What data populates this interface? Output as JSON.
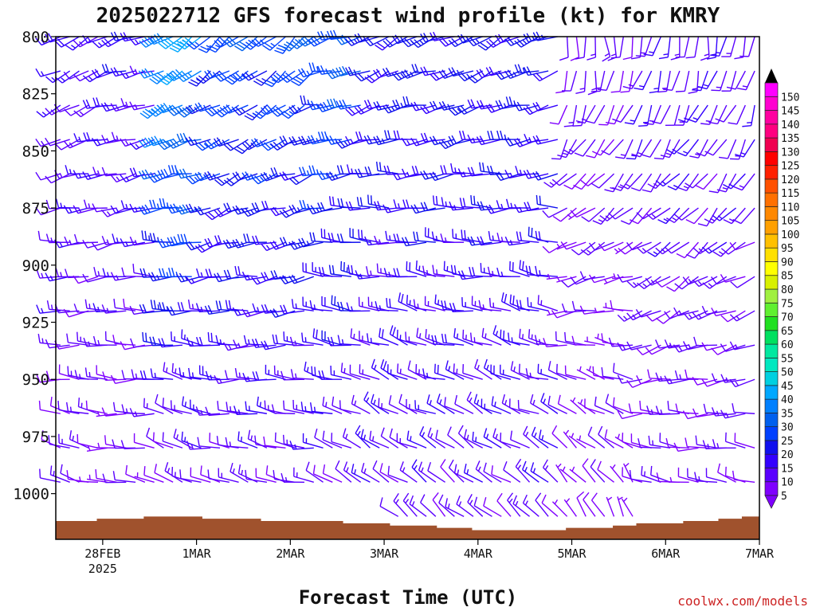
{
  "chart_data": {
    "type": "wind-barb-profile",
    "title": "2025022712 GFS forecast wind profile (kt) for KMRY",
    "xlabel": "Forecast Time (UTC)",
    "ylabel": "",
    "credit": "coolwx.com/models",
    "x_ticks": [
      {
        "day": 28,
        "label": "28FEB",
        "sublabel": "2025"
      },
      {
        "day": 29,
        "label": "1MAR"
      },
      {
        "day": 30,
        "label": "2MAR"
      },
      {
        "day": 31,
        "label": "3MAR"
      },
      {
        "day": 32,
        "label": "4MAR"
      },
      {
        "day": 33,
        "label": "5MAR"
      },
      {
        "day": 34,
        "label": "6MAR"
      },
      {
        "day": 35,
        "label": "7MAR"
      }
    ],
    "x_range_days": [
      27.5,
      35.0
    ],
    "y_ticks": [
      800,
      825,
      850,
      875,
      900,
      925,
      950,
      975,
      1000
    ],
    "y_range_hpa": [
      800,
      1020
    ],
    "pressure_levels_hpa": [
      800,
      815,
      830,
      845,
      860,
      875,
      890,
      905,
      920,
      935,
      950,
      965,
      980,
      995,
      1010
    ],
    "forecast_step_hours": 3,
    "surface_pressure_hpa": [
      1012,
      1012,
      1012,
      1012,
      1011,
      1011,
      1011,
      1011,
      1010,
      1010,
      1010,
      1010,
      1010,
      1011,
      1011,
      1011,
      1011,
      1011,
      1012,
      1012,
      1012,
      1012,
      1012,
      1012,
      1012,
      1013,
      1013,
      1013,
      1013,
      1014,
      1014,
      1014,
      1014,
      1015,
      1015,
      1015,
      1016,
      1016,
      1016,
      1016,
      1016,
      1016,
      1016,
      1016,
      1015,
      1015,
      1015,
      1015,
      1014,
      1014,
      1013,
      1013,
      1013,
      1013,
      1012,
      1012,
      1012,
      1011,
      1011,
      1010,
      1010
    ],
    "colorbar": {
      "label": "kt",
      "levels": [
        5,
        10,
        15,
        20,
        25,
        30,
        35,
        40,
        45,
        50,
        55,
        60,
        65,
        70,
        75,
        80,
        85,
        90,
        95,
        100,
        105,
        110,
        115,
        120,
        125,
        130,
        135,
        140,
        145,
        150
      ],
      "colors": [
        "#7f00ff",
        "#5a00ff",
        "#3300ff",
        "#1010ee",
        "#0040ff",
        "#0060ee",
        "#0080ff",
        "#00a8ff",
        "#00d0e0",
        "#00e8c0",
        "#00e8a0",
        "#00e060",
        "#20e020",
        "#60f030",
        "#a0f040",
        "#d8f000",
        "#ffff00",
        "#ffe000",
        "#ffc000",
        "#ffa000",
        "#ff8800",
        "#ff7000",
        "#ff5000",
        "#ff2000",
        "#ff0000",
        "#f00050",
        "#ff0080",
        "#ff00a0",
        "#ff00d0",
        "#ff00ff"
      ]
    },
    "wind_regimes": [
      {
        "days": [
          27.5,
          28.0
        ],
        "low": {
          "dir": 290,
          "spd": 10
        },
        "high": {
          "dir": 240,
          "spd": 15
        }
      },
      {
        "days": [
          28.0,
          28.6
        ],
        "low": {
          "dir": 280,
          "spd": 8
        },
        "high": {
          "dir": 250,
          "spd": 18
        }
      },
      {
        "days": [
          28.6,
          29.1
        ],
        "low": {
          "dir": 300,
          "spd": 8
        },
        "high": {
          "dir": 235,
          "spd": 40
        }
      },
      {
        "days": [
          29.1,
          30.3
        ],
        "low": {
          "dir": 290,
          "spd": 10
        },
        "high": {
          "dir": 230,
          "spd": 28
        }
      },
      {
        "days": [
          30.3,
          30.8
        ],
        "low": {
          "dir": 300,
          "spd": 10
        },
        "high": {
          "dir": 250,
          "spd": 30
        }
      },
      {
        "days": [
          30.8,
          32.9
        ],
        "low": {
          "dir": 310,
          "spd": 12
        },
        "high": {
          "dir": 245,
          "spd": 22
        }
      },
      {
        "days": [
          32.9,
          33.7
        ],
        "low": {
          "dir": 330,
          "spd": 7
        },
        "high": {
          "dir": 180,
          "spd": 12
        }
      },
      {
        "days": [
          33.7,
          35.0
        ],
        "low": {
          "dir": 290,
          "spd": 10
        },
        "high": {
          "dir": 190,
          "spd": 14
        }
      }
    ]
  }
}
